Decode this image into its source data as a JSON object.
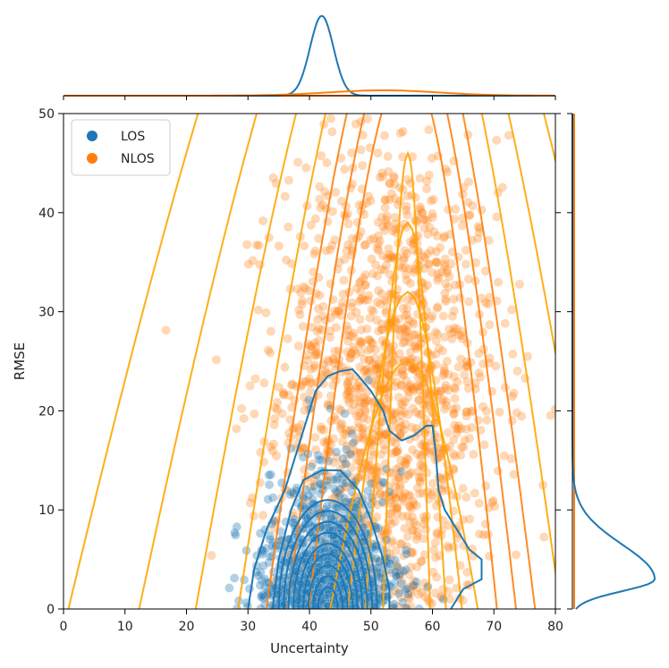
{
  "chart_data": {
    "type": "scatter",
    "xlabel": "Uncertainty",
    "ylabel": "RMSE",
    "xlim": [
      0,
      80
    ],
    "ylim": [
      0,
      50
    ],
    "xticks": [
      "0",
      "10",
      "20",
      "30",
      "40",
      "50",
      "60",
      "70",
      "80"
    ],
    "yticks": [
      "0",
      "10",
      "20",
      "30",
      "40",
      "50"
    ],
    "legend": {
      "position": "top-left",
      "entries": [
        "LOS",
        "NLOS"
      ]
    },
    "colors": {
      "LOS": "#1f77b4",
      "NLOS": "#ff7f0e",
      "NLOS_contour": "#ffa500"
    },
    "series": [
      {
        "name": "LOS",
        "cluster": {
          "x_center": 43,
          "x_spread": 5,
          "y_center": 4,
          "y_spread": 5
        },
        "kde_contour_outer": [
          [
            30,
            0
          ],
          [
            31,
            4
          ],
          [
            33,
            8
          ],
          [
            36,
            12
          ],
          [
            38,
            16
          ],
          [
            40,
            20
          ],
          [
            41,
            22
          ],
          [
            43,
            23.5
          ],
          [
            45,
            24
          ],
          [
            47,
            24.2
          ],
          [
            48,
            23.5
          ],
          [
            50,
            22
          ],
          [
            52,
            20
          ],
          [
            53,
            18
          ],
          [
            55,
            17
          ],
          [
            57,
            17.5
          ],
          [
            59,
            18.5
          ],
          [
            60,
            18.5
          ],
          [
            60.5,
            16
          ],
          [
            61,
            12
          ],
          [
            62,
            10
          ],
          [
            64,
            8
          ],
          [
            66,
            6
          ],
          [
            68,
            5
          ],
          [
            68,
            3
          ],
          [
            65,
            2
          ],
          [
            63,
            0
          ]
        ],
        "kde_contour_inner": [
          [
            34,
            0
          ],
          [
            35,
            5
          ],
          [
            37,
            10
          ],
          [
            39,
            13
          ],
          [
            42,
            14
          ],
          [
            45,
            14
          ],
          [
            48,
            12
          ],
          [
            50,
            9
          ],
          [
            52,
            5
          ],
          [
            53,
            2
          ],
          [
            53,
            0
          ]
        ],
        "marginal_x_peak": 42,
        "marginal_y_peak": 3
      },
      {
        "name": "NLOS",
        "cluster": {
          "x_center": 53,
          "x_spread": 9,
          "y_center": 22,
          "y_spread": 13
        },
        "marginal_x_peak": 52,
        "marginal_y_peak": 25
      }
    ]
  }
}
